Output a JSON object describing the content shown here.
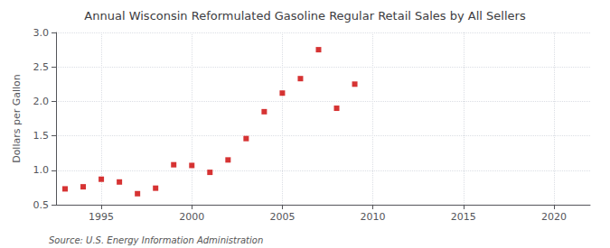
{
  "chart_data": {
    "type": "scatter",
    "title": "Annual Wisconsin Reformulated Gasoline Regular Retail Sales by All Sellers",
    "ylabel": "Dollars per Gallon",
    "annotation": "Source: U.S. Energy Information Administration",
    "x": [
      1993,
      1994,
      1995,
      1996,
      1997,
      1998,
      1999,
      2000,
      2001,
      2002,
      2003,
      2004,
      2005,
      2006,
      2007,
      2008,
      2009,
      2010
    ],
    "values": [
      0.73,
      0.76,
      0.87,
      0.83,
      0.66,
      0.74,
      1.08,
      1.07,
      0.97,
      1.15,
      1.46,
      1.85,
      2.12,
      2.33,
      2.75,
      1.9,
      2.25,
      null
    ],
    "color": "#cc0000",
    "marker": "square",
    "xlim": [
      1992.5,
      2022
    ],
    "xticks": [
      1995,
      2000,
      2005,
      2010,
      2015,
      2020
    ],
    "ylim": [
      0.5,
      3.0
    ],
    "yticks": [
      0.5,
      {
        "value": 1.0,
        "label": "1.0"
      },
      1.5,
      {
        "value": 2.0,
        "label": "2.0"
      },
      2.5,
      {
        "value": 3.0,
        "label": "3.0"
      }
    ],
    "grid": true
  }
}
